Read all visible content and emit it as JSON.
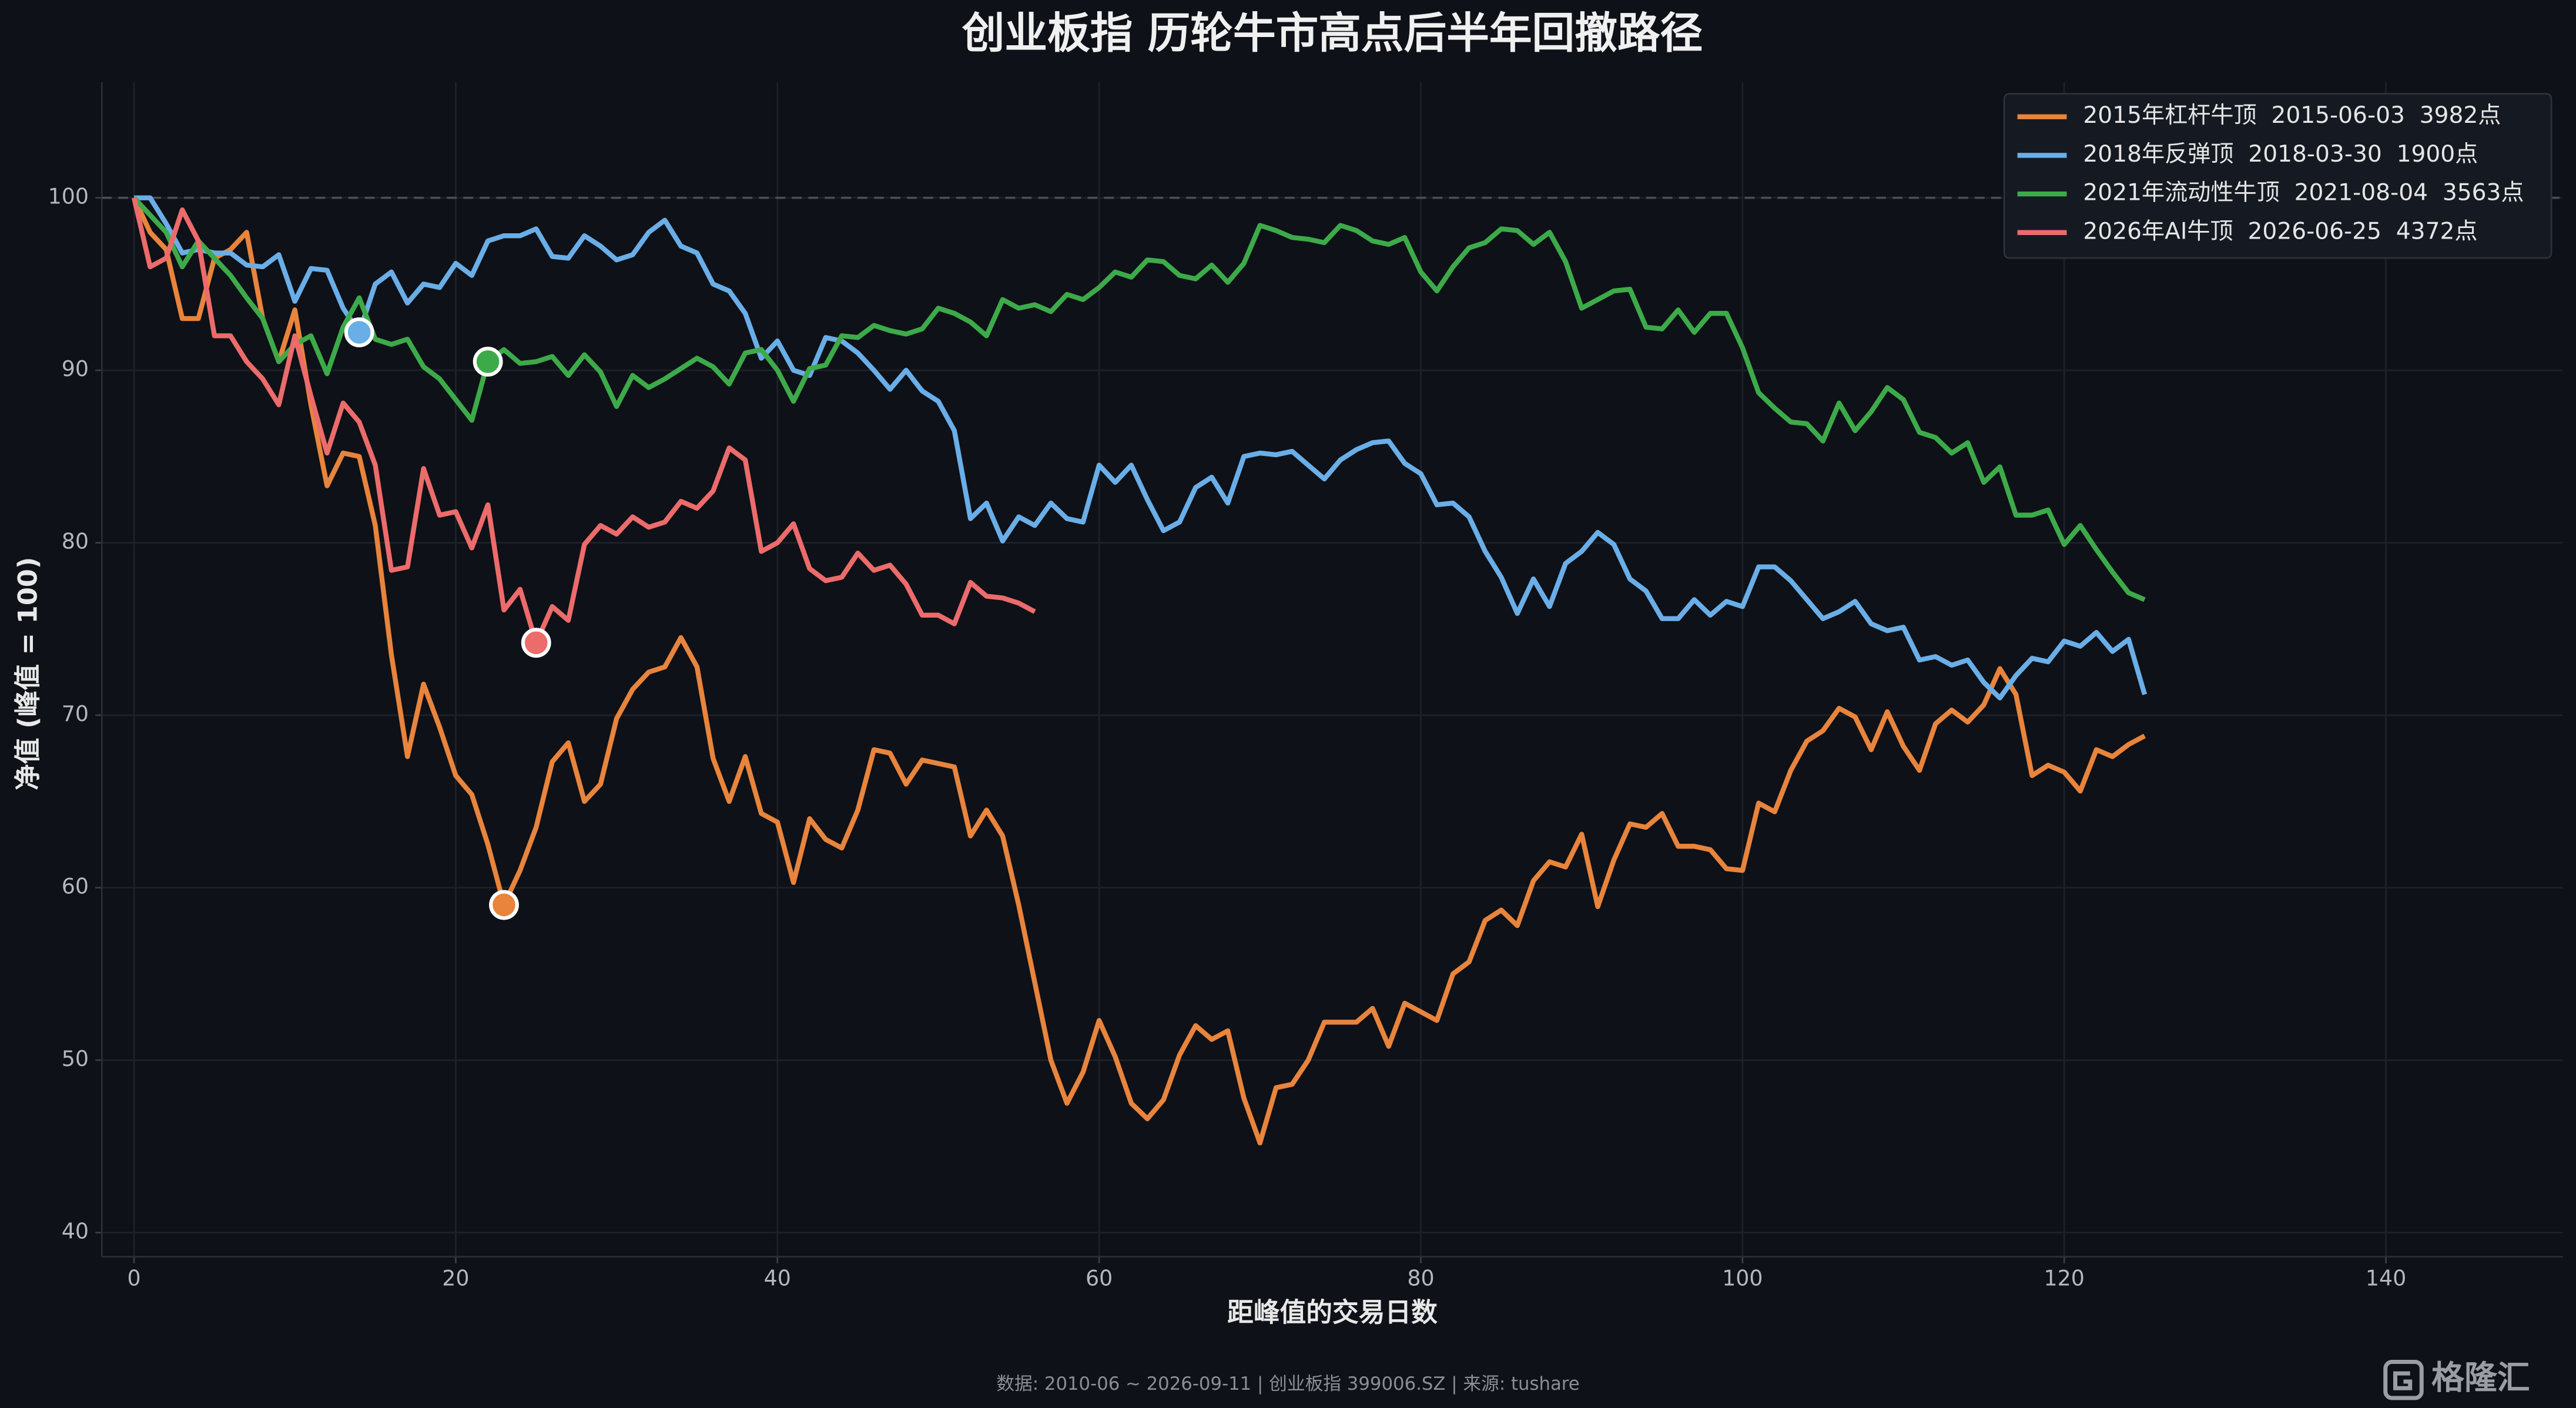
{
  "chart_data": {
    "type": "line",
    "title": "创业板指 历轮牛市高点后半年回撤路径",
    "xlabel": "距峰值的交易日数",
    "ylabel": "净值 (峰值 = 100)",
    "footer": "数据: 2010-06 ~ 2026-09-11  |  创业板指 399006.SZ  |  来源: tushare",
    "watermark": "格隆汇",
    "xlim": [
      -2,
      151
    ],
    "xticks": [
      0,
      20,
      40,
      60,
      80,
      100,
      120,
      140
    ],
    "ylim": [
      38.6,
      106.7
    ],
    "yticks": [
      40,
      50,
      60,
      70,
      80,
      90,
      100
    ],
    "ref_line": 100,
    "grid": true,
    "legend": "upper right",
    "series": [
      {
        "name": "2015年杠杆牛顶  2015-06-03  3982点",
        "color": "#e8843c",
        "highlight_x": 23,
        "values": [
          100,
          98,
          97,
          93,
          93,
          96.5,
          97,
          98,
          93,
          90.5,
          93.5,
          88,
          83.3,
          85.2,
          85,
          81,
          73.5,
          67.6,
          71.8,
          69.3,
          66.5,
          65.4,
          62.5,
          59,
          61,
          63.5,
          67.3,
          68.4,
          65,
          66,
          69.8,
          71.5,
          72.5,
          72.8,
          74.5,
          72.8,
          67.5,
          65,
          67.6,
          64.3,
          63.8,
          60.3,
          64,
          62.8,
          62.3,
          64.5,
          68,
          67.8,
          66,
          67.4,
          67.2,
          67,
          63,
          64.5,
          63,
          59,
          54.5,
          50,
          47.5,
          49.3,
          52.3,
          50.2,
          47.5,
          46.6,
          47.7,
          50.3,
          52,
          51.2,
          51.7,
          47.8,
          45.2,
          48.4,
          48.6,
          50,
          52.2,
          52.2,
          52.2,
          53,
          50.8,
          53.3,
          52.8,
          52.3,
          55,
          55.7,
          58.1,
          58.7,
          57.8,
          60.4,
          61.5,
          61.2,
          63.1,
          58.9,
          61.6,
          63.7,
          63.5,
          64.3,
          62.4,
          62.4,
          62.2,
          61.1,
          61,
          64.9,
          64.4,
          66.8,
          68.5,
          69.1,
          70.4,
          69.9,
          68,
          70.2,
          68.2,
          66.8,
          69.5,
          70.3,
          69.6,
          70.6,
          72.7,
          71.2,
          66.5,
          67.1,
          66.7,
          65.6,
          68,
          67.6,
          68.3,
          68.8
        ]
      },
      {
        "name": "2018年反弹顶  2018-03-30  1900点",
        "color": "#6aaee8",
        "highlight_x": 14,
        "values": [
          100,
          100,
          98.5,
          96.8,
          97,
          96.8,
          96.8,
          96.1,
          96,
          96.7,
          94,
          95.9,
          95.8,
          93.6,
          92.2,
          95,
          95.7,
          93.9,
          95,
          94.8,
          96.2,
          95.5,
          97.5,
          97.8,
          97.8,
          98.2,
          96.6,
          96.5,
          97.8,
          97.2,
          96.4,
          96.7,
          98,
          98.7,
          97.2,
          96.8,
          95,
          94.6,
          93.3,
          90.7,
          91.7,
          90,
          89.7,
          91.9,
          91.7,
          91,
          90,
          88.9,
          90,
          88.8,
          88.2,
          86.5,
          81.4,
          82.3,
          80.1,
          81.5,
          81,
          82.3,
          81.4,
          81.2,
          84.5,
          83.5,
          84.5,
          82.5,
          80.7,
          81.2,
          83.2,
          83.8,
          82.3,
          85,
          85.2,
          85.1,
          85.3,
          84.5,
          83.7,
          84.8,
          85.4,
          85.8,
          85.9,
          84.6,
          84,
          82.2,
          82.3,
          81.5,
          79.5,
          78,
          75.9,
          77.9,
          76.3,
          78.8,
          79.5,
          80.6,
          79.9,
          77.9,
          77.2,
          75.6,
          75.6,
          76.7,
          75.8,
          76.6,
          76.3,
          78.6,
          78.6,
          77.8,
          76.7,
          75.6,
          76,
          76.6,
          75.3,
          74.9,
          75.1,
          73.2,
          73.4,
          72.9,
          73.2,
          71.9,
          71,
          72.3,
          73.3,
          73.1,
          74.3,
          74,
          74.8,
          73.7,
          74.4,
          71.2
        ]
      },
      {
        "name": "2021年流动性牛顶  2021-08-04  3563点",
        "color": "#3daa4a",
        "highlight_x": 22,
        "values": [
          100,
          99,
          98,
          96,
          97.5,
          96.5,
          95.5,
          94.2,
          93,
          90.5,
          91.5,
          92,
          89.8,
          92.5,
          94.2,
          91.8,
          91.5,
          91.8,
          90.2,
          89.5,
          88.3,
          87.1,
          90.5,
          91.2,
          90.4,
          90.5,
          90.8,
          89.7,
          90.9,
          89.9,
          87.9,
          89.7,
          89,
          89.5,
          90.1,
          90.7,
          90.2,
          89.2,
          91,
          91.2,
          90,
          88.2,
          90.1,
          90.3,
          92,
          91.9,
          92.6,
          92.3,
          92.1,
          92.4,
          93.6,
          93.3,
          92.8,
          92,
          94.1,
          93.6,
          93.8,
          93.4,
          94.4,
          94.1,
          94.8,
          95.7,
          95.4,
          96.4,
          96.3,
          95.5,
          95.3,
          96.1,
          95.1,
          96.2,
          98.4,
          98.1,
          97.7,
          97.6,
          97.4,
          98.4,
          98.1,
          97.5,
          97.3,
          97.7,
          95.7,
          94.6,
          96,
          97.1,
          97.4,
          98.2,
          98.1,
          97.3,
          98,
          96.3,
          93.6,
          94.1,
          94.6,
          94.7,
          92.5,
          92.4,
          93.5,
          92.2,
          93.3,
          93.3,
          91.3,
          88.7,
          87.8,
          87,
          86.9,
          85.9,
          88.1,
          86.5,
          87.6,
          89,
          88.3,
          86.4,
          86.1,
          85.2,
          85.8,
          83.5,
          84.4,
          81.6,
          81.6,
          81.9,
          79.9,
          81,
          79.6,
          78.3,
          77.1,
          76.7
        ]
      },
      {
        "name": "2026年AI牛顶  2026-06-25  4372点",
        "color": "#ec6b6b",
        "highlight_x": 25,
        "values": [
          100,
          96,
          96.5,
          99.3,
          97.5,
          92,
          92,
          90.5,
          89.5,
          88,
          92,
          88.5,
          85.2,
          88.1,
          87,
          84.5,
          78.4,
          78.6,
          84.3,
          81.6,
          81.8,
          79.7,
          82.2,
          76.1,
          77.3,
          74.2,
          76.3,
          75.5,
          79.9,
          81,
          80.5,
          81.5,
          80.9,
          81.2,
          82.4,
          82,
          83,
          85.5,
          84.8,
          79.5,
          80,
          81.1,
          78.5,
          77.8,
          78,
          79.4,
          78.4,
          78.7,
          77.6,
          75.8,
          75.8,
          75.3,
          77.7,
          76.9,
          76.8,
          76.5,
          76
        ]
      }
    ]
  }
}
